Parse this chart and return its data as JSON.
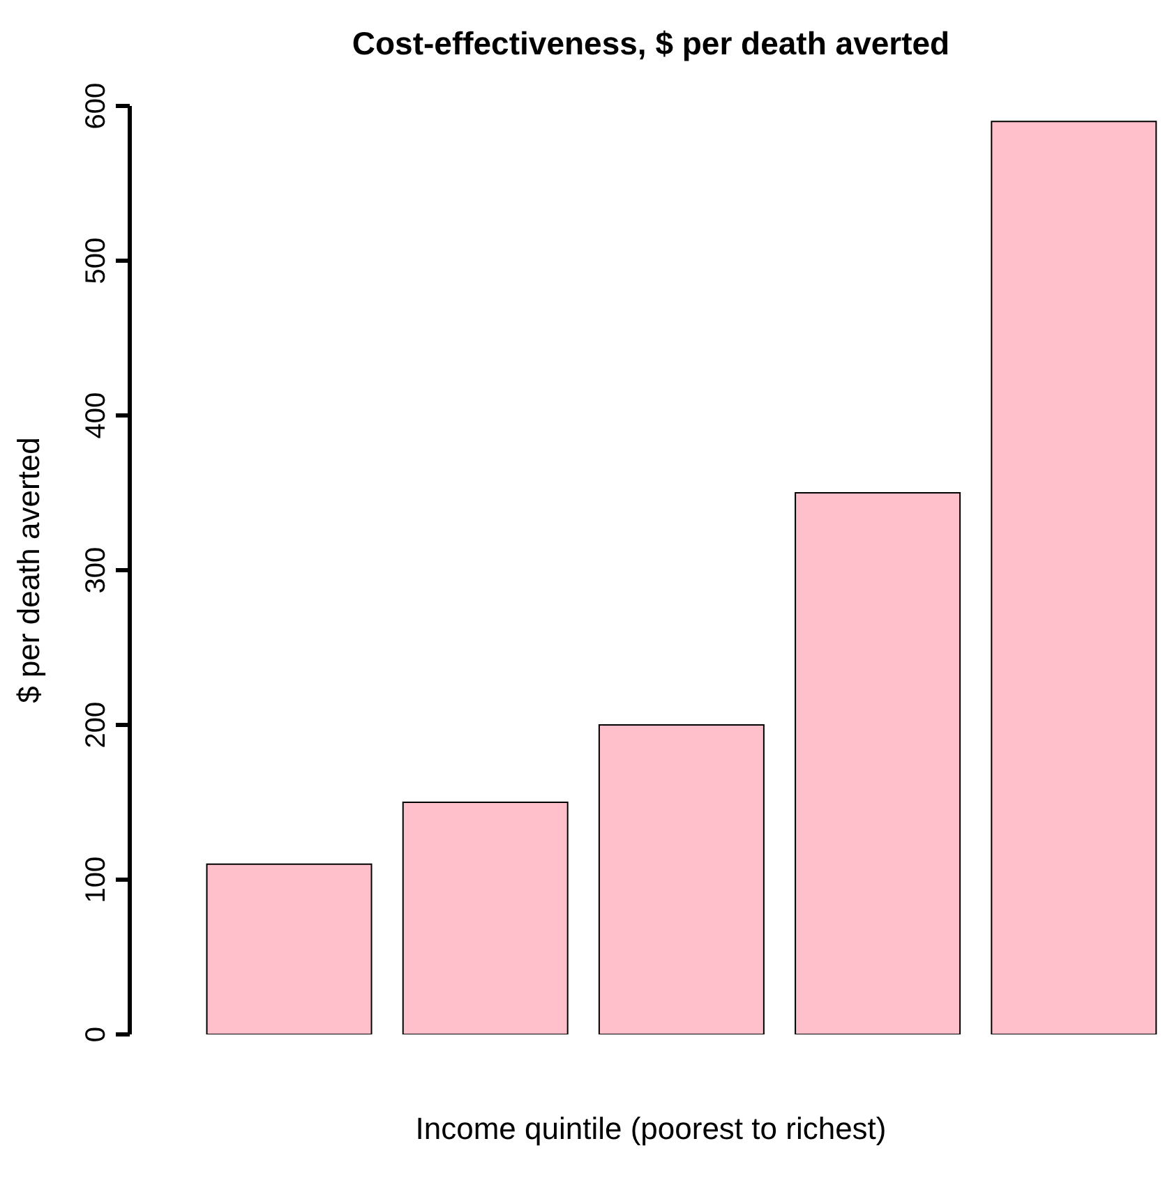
{
  "chart_data": {
    "type": "bar",
    "title": "Cost-effectiveness, $ per death averted",
    "xlabel": "Income quintile (poorest to richest)",
    "ylabel": "$ per death averted",
    "categories": [
      null,
      null,
      null,
      null,
      null
    ],
    "values": [
      110,
      150,
      200,
      350,
      590
    ],
    "color": "#ffc0cb",
    "ylim": [
      0,
      600
    ],
    "yticks": [
      0,
      100,
      200,
      300,
      400,
      500,
      600
    ],
    "tick_labels": "y"
  }
}
